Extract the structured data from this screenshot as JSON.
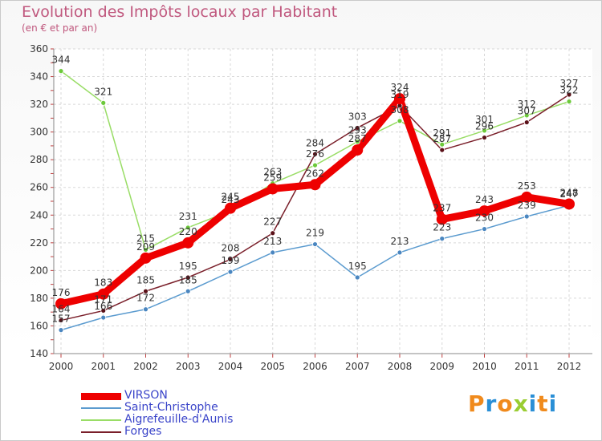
{
  "title": "Evolution des Impôts locaux par Habitant",
  "subtitle": "(en € et par an)",
  "logo": {
    "letters": [
      "P",
      "r",
      "o",
      "x",
      "i",
      "t",
      "i"
    ],
    "colors": [
      "#f08a1c",
      "#2a8fd6",
      "#f08a1c",
      "#9acd32",
      "#2a8fd6",
      "#f08a1c",
      "#2a8fd6"
    ]
  },
  "chart_data": {
    "type": "line",
    "title": "Evolution des Impôts locaux par Habitant",
    "ylabel": "(en € et par an)",
    "xlabel": "",
    "ylim": [
      140,
      360
    ],
    "yticks": [
      140,
      160,
      180,
      200,
      220,
      240,
      260,
      280,
      300,
      320,
      340,
      360
    ],
    "categories": [
      "2000",
      "2001",
      "2002",
      "2003",
      "2004",
      "2005",
      "2006",
      "2007",
      "2008",
      "2009",
      "2010",
      "2011",
      "2012"
    ],
    "series": [
      {
        "name": "Saint-Christophe",
        "color": "#5b9bcf",
        "marker": "#4a86c0",
        "values": [
          157,
          166,
          172,
          185,
          199,
          213,
          219,
          195,
          213,
          223,
          230,
          239,
          247
        ],
        "labels": [
          "157",
          "166",
          "172",
          "185",
          "199",
          "213",
          "219",
          "195",
          "213",
          "223",
          "230",
          "239",
          "247"
        ]
      },
      {
        "name": "Aigrefeuille-d'Aunis",
        "color": "#99dd66",
        "marker": "#6cc93a",
        "values": [
          344,
          321,
          215,
          231,
          243,
          263,
          276,
          293,
          308,
          291,
          301,
          312,
          322
        ],
        "labels": [
          "344",
          "321",
          "215",
          "231",
          "243",
          "263",
          "276",
          "293",
          "308",
          "291",
          "301",
          "312",
          "322"
        ]
      },
      {
        "name": "Forges",
        "color": "#7a1f2a",
        "marker": "#5a1018",
        "values": [
          164,
          171,
          185,
          195,
          208,
          227,
          284,
          303,
          319,
          287,
          296,
          307,
          327
        ],
        "labels": [
          "164",
          "171",
          "185",
          "195",
          "208",
          "227",
          "284",
          "303",
          "319",
          "287",
          "296",
          "307",
          "327"
        ]
      },
      {
        "name": "VIRSON",
        "color": "#ee0000",
        "marker": "#ee0000",
        "values": [
          176,
          183,
          209,
          220,
          245,
          259,
          262,
          287,
          324,
          237,
          243,
          253,
          248
        ],
        "labels": [
          "176",
          "183",
          "209",
          "220",
          "245",
          "259",
          "262",
          "287",
          "324",
          "237",
          "243",
          "253",
          "248"
        ]
      }
    ],
    "legend": [
      "VIRSON",
      "Saint-Christophe",
      "Aigrefeuille-d'Aunis",
      "Forges"
    ]
  }
}
